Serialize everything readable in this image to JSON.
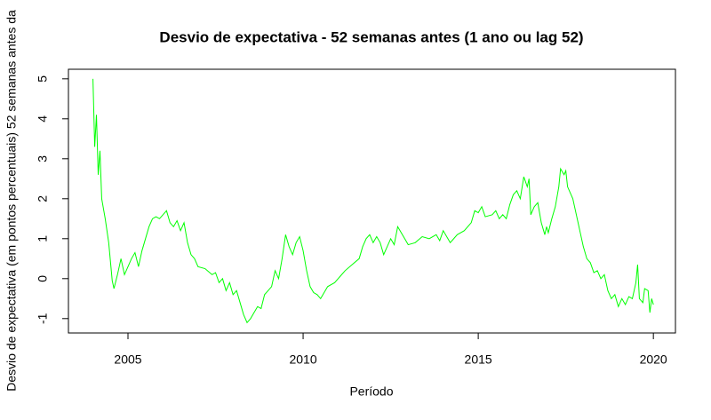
{
  "chart_data": {
    "type": "line",
    "title": "Desvio de expectativa - 52 semanas antes (1 ano ou lag 52)",
    "x_label": "Período",
    "y_label": "Desvio de expectativa (em pontos percentuais) 52 semanas antes da",
    "xlim": [
      2003.3,
      2020.63
    ],
    "ylim": [
      -1.36,
      5.24
    ],
    "xticks": [
      2005,
      2010,
      2015,
      2020
    ],
    "yticks": [
      -1,
      0,
      1,
      2,
      3,
      4,
      5
    ],
    "series": [
      {
        "color": "#00ff00",
        "x": [
          2004.0,
          2004.05,
          2004.1,
          2004.15,
          2004.2,
          2004.25,
          2004.35,
          2004.45,
          2004.55,
          2004.6,
          2004.7,
          2004.8,
          2004.9,
          2005.0,
          2005.1,
          2005.2,
          2005.3,
          2005.4,
          2005.5,
          2005.6,
          2005.7,
          2005.8,
          2005.9,
          2006.0,
          2006.1,
          2006.2,
          2006.3,
          2006.4,
          2006.5,
          2006.6,
          2006.7,
          2006.8,
          2006.9,
          2007.0,
          2007.2,
          2007.4,
          2007.5,
          2007.6,
          2007.7,
          2007.8,
          2007.9,
          2008.0,
          2008.1,
          2008.2,
          2008.3,
          2008.4,
          2008.5,
          2008.6,
          2008.7,
          2008.8,
          2008.9,
          2009.0,
          2009.1,
          2009.2,
          2009.3,
          2009.4,
          2009.5,
          2009.6,
          2009.7,
          2009.8,
          2009.9,
          2010.0,
          2010.1,
          2010.2,
          2010.3,
          2010.4,
          2010.5,
          2010.6,
          2010.7,
          2010.9,
          2011.0,
          2011.2,
          2011.4,
          2011.6,
          2011.7,
          2011.8,
          2011.9,
          2012.0,
          2012.1,
          2012.2,
          2012.3,
          2012.4,
          2012.5,
          2012.6,
          2012.7,
          2012.8,
          2012.9,
          2013.0,
          2013.2,
          2013.4,
          2013.6,
          2013.8,
          2013.9,
          2014.0,
          2014.2,
          2014.4,
          2014.6,
          2014.8,
          2014.9,
          2015.0,
          2015.1,
          2015.2,
          2015.4,
          2015.5,
          2015.6,
          2015.7,
          2015.8,
          2015.9,
          2016.0,
          2016.1,
          2016.2,
          2016.3,
          2016.4,
          2016.45,
          2016.5,
          2016.6,
          2016.7,
          2016.8,
          2016.9,
          2016.95,
          2017.0,
          2017.1,
          2017.2,
          2017.3,
          2017.35,
          2017.45,
          2017.5,
          2017.55,
          2017.7,
          2017.8,
          2017.9,
          2018.0,
          2018.1,
          2018.2,
          2018.3,
          2018.4,
          2018.5,
          2018.6,
          2018.7,
          2018.8,
          2018.9,
          2019.0,
          2019.1,
          2019.2,
          2019.3,
          2019.4,
          2019.5,
          2019.55,
          2019.6,
          2019.7,
          2019.75,
          2019.85,
          2019.9,
          2019.95,
          2020.0
        ],
        "values": [
          5.0,
          3.3,
          4.1,
          2.6,
          3.2,
          2.0,
          1.5,
          0.9,
          -0.05,
          -0.25,
          0.1,
          0.5,
          0.1,
          0.3,
          0.5,
          0.65,
          0.3,
          0.7,
          1.0,
          1.3,
          1.5,
          1.55,
          1.5,
          1.6,
          1.7,
          1.4,
          1.3,
          1.45,
          1.2,
          1.4,
          0.9,
          0.6,
          0.5,
          0.3,
          0.25,
          0.1,
          0.15,
          -0.1,
          0.0,
          -0.3,
          -0.1,
          -0.4,
          -0.3,
          -0.6,
          -0.9,
          -1.1,
          -1.0,
          -0.85,
          -0.7,
          -0.75,
          -0.4,
          -0.3,
          -0.2,
          0.2,
          0.0,
          0.5,
          1.1,
          0.8,
          0.6,
          0.9,
          1.05,
          0.7,
          0.2,
          -0.2,
          -0.35,
          -0.4,
          -0.5,
          -0.35,
          -0.2,
          -0.1,
          0.0,
          0.2,
          0.35,
          0.5,
          0.8,
          1.0,
          1.1,
          0.9,
          1.05,
          0.9,
          0.6,
          0.8,
          1.0,
          0.85,
          1.3,
          1.15,
          1.0,
          0.85,
          0.9,
          1.05,
          1.0,
          1.1,
          0.95,
          1.2,
          0.9,
          1.1,
          1.2,
          1.4,
          1.7,
          1.65,
          1.8,
          1.55,
          1.6,
          1.7,
          1.5,
          1.6,
          1.5,
          1.85,
          2.1,
          2.2,
          2.0,
          2.55,
          2.3,
          2.5,
          1.6,
          1.8,
          1.9,
          1.4,
          1.1,
          1.3,
          1.15,
          1.5,
          1.8,
          2.3,
          2.75,
          2.6,
          2.7,
          2.3,
          2.0,
          1.6,
          1.2,
          0.8,
          0.5,
          0.4,
          0.15,
          0.2,
          0.0,
          0.1,
          -0.3,
          -0.5,
          -0.4,
          -0.7,
          -0.5,
          -0.65,
          -0.45,
          -0.5,
          -0.1,
          0.35,
          -0.5,
          -0.6,
          -0.25,
          -0.3,
          -0.85,
          -0.5,
          -0.65
        ]
      }
    ]
  }
}
